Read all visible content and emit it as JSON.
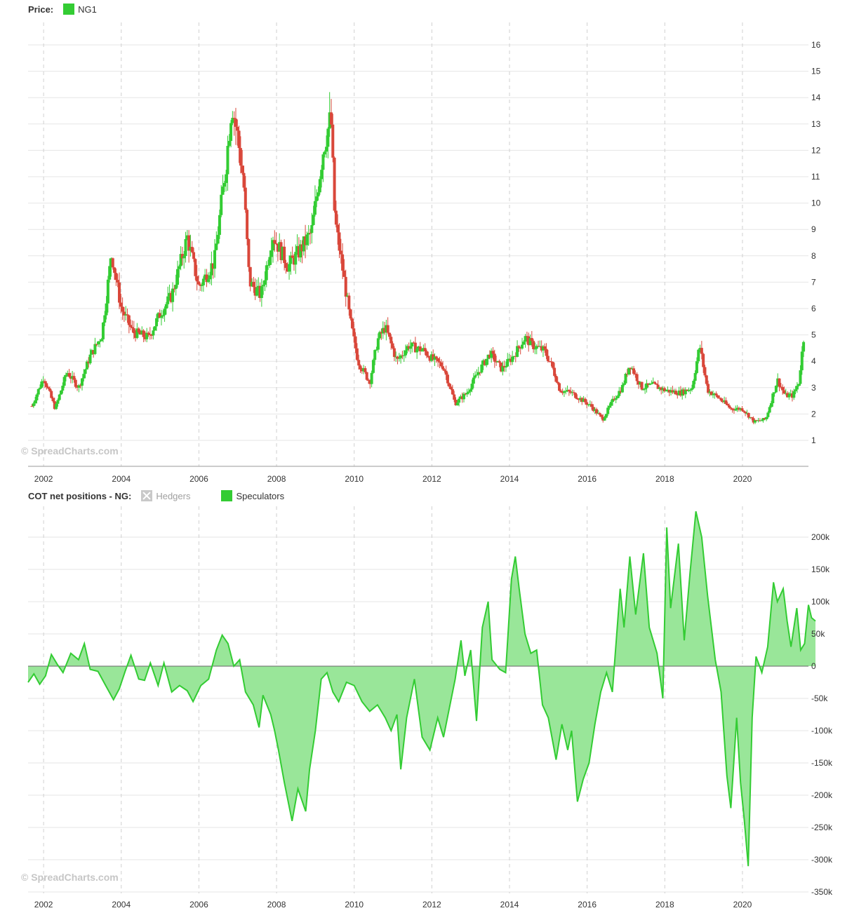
{
  "price_legend": {
    "title": "Price:",
    "series_label": "NG1",
    "series_color": "#33cc33"
  },
  "cot_legend": {
    "title": "COT net positions - NG:",
    "hedgers_label": "Hedgers",
    "speculators_label": "Speculators",
    "speculators_color": "#33cc33",
    "hedgers_state": "hidden"
  },
  "watermark": "© SpreadCharts.com",
  "colors": {
    "up": "#33cc33",
    "down": "#d9473a",
    "area_fill": "#99e699",
    "area_line": "#33cc33",
    "grid": "#e6e6e6"
  },
  "chart_data": [
    {
      "type": "candlestick",
      "title": "Price: NG1",
      "series": [
        {
          "name": "NG1"
        }
      ],
      "x_ticks": [
        "2002",
        "2004",
        "2006",
        "2008",
        "2010",
        "2012",
        "2014",
        "2016",
        "2018",
        "2020"
      ],
      "y_ticks": [
        1,
        2,
        3,
        4,
        5,
        6,
        7,
        8,
        9,
        10,
        11,
        12,
        13,
        14,
        15,
        16
      ],
      "ylim": [
        0.1,
        16.5
      ],
      "xlim": [
        2001.6,
        2021.7
      ],
      "y_axis_side": "right",
      "grid": true,
      "approx_close_path": [
        [
          2001.7,
          2.3
        ],
        [
          2002.0,
          3.4
        ],
        [
          2002.3,
          2.2
        ],
        [
          2002.6,
          3.6
        ],
        [
          2002.9,
          3.0
        ],
        [
          2003.2,
          4.2
        ],
        [
          2003.5,
          5.0
        ],
        [
          2003.75,
          8.1
        ],
        [
          2004.0,
          6.0
        ],
        [
          2004.3,
          5.1
        ],
        [
          2004.7,
          4.9
        ],
        [
          2005.0,
          5.8
        ],
        [
          2005.3,
          6.5
        ],
        [
          2005.7,
          8.7
        ],
        [
          2006.0,
          6.8
        ],
        [
          2006.4,
          7.8
        ],
        [
          2006.7,
          11.5
        ],
        [
          2006.85,
          13.8
        ],
        [
          2007.0,
          12.5
        ],
        [
          2007.15,
          10.8
        ],
        [
          2007.3,
          7.0
        ],
        [
          2007.6,
          6.5
        ],
        [
          2007.9,
          8.8
        ],
        [
          2008.3,
          7.6
        ],
        [
          2008.6,
          8.2
        ],
        [
          2008.9,
          8.9
        ],
        [
          2009.2,
          12.0
        ],
        [
          2009.4,
          13.3
        ],
        [
          2009.5,
          9.4
        ],
        [
          2009.7,
          7.5
        ],
        [
          2009.9,
          5.5
        ],
        [
          2010.1,
          4.0
        ],
        [
          2010.4,
          3.2
        ],
        [
          2010.6,
          4.8
        ],
        [
          2010.8,
          5.3
        ],
        [
          2011.1,
          4.0
        ],
        [
          2011.4,
          4.6
        ],
        [
          2011.8,
          4.4
        ],
        [
          2012.0,
          4.1
        ],
        [
          2012.3,
          3.8
        ],
        [
          2012.6,
          2.4
        ],
        [
          2012.9,
          2.8
        ],
        [
          2013.2,
          3.6
        ],
        [
          2013.5,
          4.3
        ],
        [
          2013.8,
          3.7
        ],
        [
          2014.1,
          4.2
        ],
        [
          2014.4,
          4.9
        ],
        [
          2014.6,
          4.6
        ],
        [
          2014.9,
          4.4
        ],
        [
          2015.1,
          3.8
        ],
        [
          2015.3,
          2.9
        ],
        [
          2015.6,
          2.8
        ],
        [
          2015.9,
          2.5
        ],
        [
          2016.1,
          2.3
        ],
        [
          2016.4,
          1.8
        ],
        [
          2016.7,
          2.6
        ],
        [
          2016.9,
          3.0
        ],
        [
          2017.1,
          3.9
        ],
        [
          2017.4,
          3.0
        ],
        [
          2017.7,
          3.1
        ],
        [
          2018.0,
          2.9
        ],
        [
          2018.4,
          2.8
        ],
        [
          2018.7,
          3.0
        ],
        [
          2018.9,
          4.6
        ],
        [
          2019.1,
          2.9
        ],
        [
          2019.4,
          2.6
        ],
        [
          2019.7,
          2.2
        ],
        [
          2020.0,
          2.2
        ],
        [
          2020.3,
          1.7
        ],
        [
          2020.6,
          1.8
        ],
        [
          2020.9,
          3.3
        ],
        [
          2021.1,
          2.7
        ],
        [
          2021.3,
          2.7
        ],
        [
          2021.45,
          3.2
        ],
        [
          2021.6,
          5.2
        ]
      ]
    },
    {
      "type": "area",
      "title": "COT net positions - NG",
      "series": [
        {
          "name": "Hedgers",
          "visible": false
        },
        {
          "name": "Speculators",
          "visible": true,
          "color": "#33cc33"
        }
      ],
      "x_ticks": [
        "2002",
        "2004",
        "2006",
        "2008",
        "2010",
        "2012",
        "2014",
        "2016",
        "2018",
        "2020"
      ],
      "y_ticks": [
        "200k",
        "150k",
        "100k",
        "50k",
        "0",
        "-50k",
        "-100k",
        "-150k",
        "-200k",
        "-250k",
        "-300k",
        "-350k"
      ],
      "ylim": [
        -350000,
        235000
      ],
      "xlim": [
        2001.6,
        2021.7
      ],
      "y_axis_side": "right",
      "grid": true,
      "speculators_values": [
        [
          2001.6,
          -25000
        ],
        [
          2001.75,
          -12000
        ],
        [
          2001.9,
          -28000
        ],
        [
          2002.05,
          -15000
        ],
        [
          2002.2,
          18000
        ],
        [
          2002.35,
          3000
        ],
        [
          2002.5,
          -10000
        ],
        [
          2002.7,
          20000
        ],
        [
          2002.9,
          10000
        ],
        [
          2003.05,
          35000
        ],
        [
          2003.2,
          -5000
        ],
        [
          2003.4,
          -8000
        ],
        [
          2003.6,
          -30000
        ],
        [
          2003.8,
          -52000
        ],
        [
          2003.95,
          -35000
        ],
        [
          2004.1,
          -8000
        ],
        [
          2004.25,
          17000
        ],
        [
          2004.45,
          -20000
        ],
        [
          2004.6,
          -22000
        ],
        [
          2004.75,
          5000
        ],
        [
          2004.95,
          -30000
        ],
        [
          2005.1,
          5000
        ],
        [
          2005.3,
          -40000
        ],
        [
          2005.5,
          -30000
        ],
        [
          2005.7,
          -38000
        ],
        [
          2005.85,
          -55000
        ],
        [
          2006.05,
          -30000
        ],
        [
          2006.25,
          -20000
        ],
        [
          2006.45,
          25000
        ],
        [
          2006.6,
          48000
        ],
        [
          2006.75,
          35000
        ],
        [
          2006.9,
          0
        ],
        [
          2007.05,
          10000
        ],
        [
          2007.2,
          -40000
        ],
        [
          2007.4,
          -60000
        ],
        [
          2007.55,
          -95000
        ],
        [
          2007.65,
          -45000
        ],
        [
          2007.85,
          -75000
        ],
        [
          2007.95,
          -100000
        ],
        [
          2008.05,
          -130000
        ],
        [
          2008.2,
          -180000
        ],
        [
          2008.4,
          -240000
        ],
        [
          2008.55,
          -190000
        ],
        [
          2008.75,
          -225000
        ],
        [
          2008.85,
          -160000
        ],
        [
          2009.0,
          -100000
        ],
        [
          2009.15,
          -20000
        ],
        [
          2009.3,
          -10000
        ],
        [
          2009.45,
          -40000
        ],
        [
          2009.6,
          -55000
        ],
        [
          2009.8,
          -25000
        ],
        [
          2010.0,
          -30000
        ],
        [
          2010.2,
          -55000
        ],
        [
          2010.4,
          -70000
        ],
        [
          2010.6,
          -60000
        ],
        [
          2010.8,
          -80000
        ],
        [
          2010.95,
          -100000
        ],
        [
          2011.1,
          -75000
        ],
        [
          2011.2,
          -160000
        ],
        [
          2011.35,
          -80000
        ],
        [
          2011.55,
          -20000
        ],
        [
          2011.75,
          -110000
        ],
        [
          2011.95,
          -130000
        ],
        [
          2012.15,
          -80000
        ],
        [
          2012.3,
          -110000
        ],
        [
          2012.45,
          -65000
        ],
        [
          2012.6,
          -20000
        ],
        [
          2012.75,
          40000
        ],
        [
          2012.85,
          -15000
        ],
        [
          2013.0,
          25000
        ],
        [
          2013.15,
          -85000
        ],
        [
          2013.3,
          60000
        ],
        [
          2013.45,
          100000
        ],
        [
          2013.55,
          10000
        ],
        [
          2013.75,
          -5000
        ],
        [
          2013.9,
          -10000
        ],
        [
          2014.05,
          135000
        ],
        [
          2014.15,
          170000
        ],
        [
          2014.25,
          120000
        ],
        [
          2014.4,
          50000
        ],
        [
          2014.55,
          20000
        ],
        [
          2014.7,
          25000
        ],
        [
          2014.85,
          -60000
        ],
        [
          2015.0,
          -80000
        ],
        [
          2015.2,
          -145000
        ],
        [
          2015.35,
          -90000
        ],
        [
          2015.5,
          -130000
        ],
        [
          2015.6,
          -100000
        ],
        [
          2015.75,
          -210000
        ],
        [
          2015.9,
          -175000
        ],
        [
          2016.05,
          -150000
        ],
        [
          2016.2,
          -90000
        ],
        [
          2016.35,
          -40000
        ],
        [
          2016.5,
          -10000
        ],
        [
          2016.65,
          -40000
        ],
        [
          2016.85,
          120000
        ],
        [
          2016.95,
          60000
        ],
        [
          2017.1,
          170000
        ],
        [
          2017.25,
          80000
        ],
        [
          2017.45,
          175000
        ],
        [
          2017.6,
          60000
        ],
        [
          2017.8,
          20000
        ],
        [
          2017.95,
          -50000
        ],
        [
          2018.05,
          215000
        ],
        [
          2018.15,
          90000
        ],
        [
          2018.35,
          190000
        ],
        [
          2018.5,
          40000
        ],
        [
          2018.65,
          145000
        ],
        [
          2018.8,
          240000
        ],
        [
          2018.95,
          200000
        ],
        [
          2019.1,
          110000
        ],
        [
          2019.3,
          10000
        ],
        [
          2019.45,
          -40000
        ],
        [
          2019.6,
          -170000
        ],
        [
          2019.7,
          -220000
        ],
        [
          2019.85,
          -80000
        ],
        [
          2019.95,
          -180000
        ],
        [
          2020.05,
          -240000
        ],
        [
          2020.15,
          -310000
        ],
        [
          2020.25,
          -80000
        ],
        [
          2020.35,
          15000
        ],
        [
          2020.5,
          -10000
        ],
        [
          2020.65,
          30000
        ],
        [
          2020.8,
          130000
        ],
        [
          2020.9,
          100000
        ],
        [
          2021.05,
          120000
        ],
        [
          2021.15,
          70000
        ],
        [
          2021.25,
          30000
        ],
        [
          2021.4,
          90000
        ],
        [
          2021.5,
          25000
        ],
        [
          2021.6,
          35000
        ],
        [
          2021.7,
          95000
        ],
        [
          2021.78,
          75000
        ],
        [
          2021.88,
          70000
        ]
      ]
    }
  ]
}
